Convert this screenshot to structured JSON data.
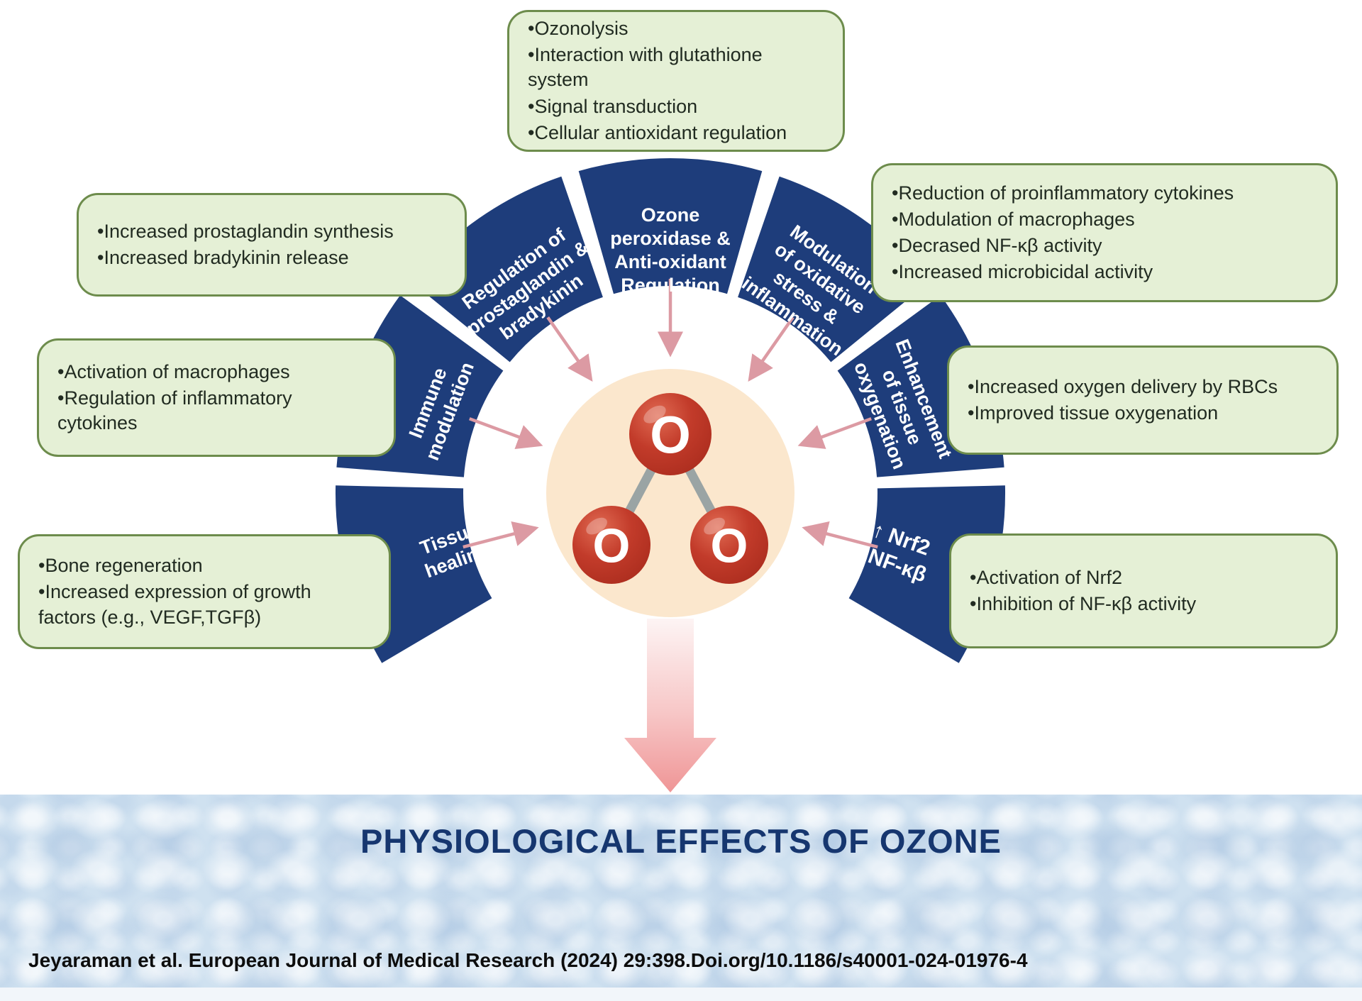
{
  "colors": {
    "segment_navy": "#1e3d7b",
    "callout_fill": "#e5f0d6",
    "callout_border": "#6d8c4c",
    "callout_text": "#212b21",
    "peach": "#fbe7cd",
    "arrow_pink": "#dc9aa3",
    "atom_red": "#c23b2a",
    "bond_gray": "#9aa4a4",
    "band_blue": "#cfe1f0",
    "title_navy": "#16366f"
  },
  "diagram": {
    "atoms": [
      "O",
      "O",
      "O"
    ],
    "segments": [
      {
        "id": "tissue-healing",
        "label": "Tissue\nhealing"
      },
      {
        "id": "immune-modulation",
        "label": "Immune\nmodulation"
      },
      {
        "id": "regulation-prostaglandin-bradykinin",
        "label": "Regulation of\nprostaglandin &\nbradykinin"
      },
      {
        "id": "ozone-peroxidase-antioxidant-regulation",
        "label": "Ozone\nperoxidase &\nAnti-oxidant\nRegulation"
      },
      {
        "id": "modulation-oxidative-stress-inflammation",
        "label": "Modulation\nof oxidative\nstress &\ninflammation"
      },
      {
        "id": "enhancement-tissue-oxygenation",
        "label": "Enhancement\nof tissue\noxygenation"
      },
      {
        "id": "nrf2-nfkb",
        "label": "↑ Nrf2\n↓NF-κβ"
      }
    ],
    "callouts": {
      "top": {
        "items": [
          "Ozonolysis",
          "Interaction with glutathione system",
          "Signal transduction",
          "Cellular antioxidant regulation"
        ]
      },
      "left_upper": {
        "items": [
          "Increased prostaglandin synthesis",
          "Increased bradykinin release"
        ]
      },
      "left_middle": {
        "items": [
          "Activation of macrophages",
          "Regulation of inflammatory cytokines"
        ]
      },
      "left_lower": {
        "items": [
          "Bone regeneration",
          "Increased expression of growth factors (e.g., VEGF,TGFβ)"
        ]
      },
      "right_upper": {
        "items": [
          "Reduction of proinflammatory cytokines",
          "Modulation of macrophages",
          "Decrased NF-κβ activity",
          "Increased microbicidal activity"
        ]
      },
      "right_middle": {
        "items": [
          "Increased oxygen delivery by RBCs",
          "Improved tissue oxygenation"
        ]
      },
      "right_lower": {
        "items": [
          "Activation of Nrf2",
          "Inhibition of NF-κβ activity"
        ]
      }
    }
  },
  "footer": {
    "title": "PHYSIOLOGICAL EFFECTS OF OZONE",
    "citation": "Jeyaraman et al. European Journal of Medical Research (2024) 29:398.Doi.org/10.1186/s40001-024-01976-4"
  }
}
